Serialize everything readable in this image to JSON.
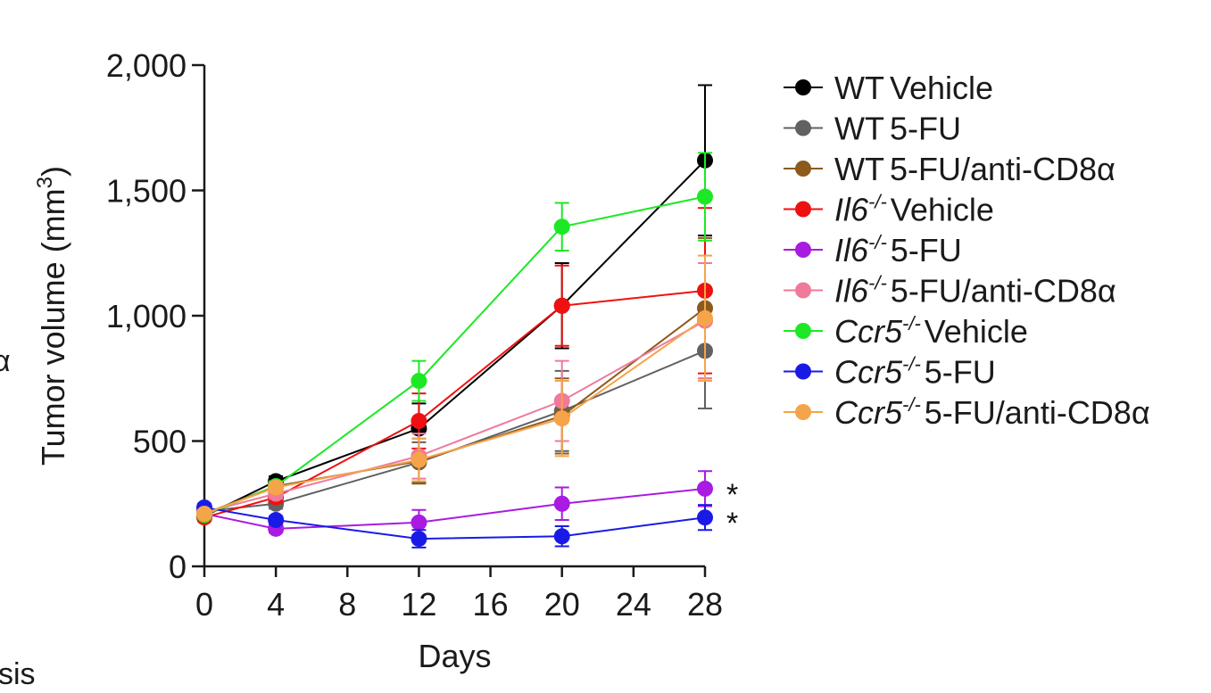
{
  "colors": {
    "WT Vehicle": "#000000",
    "WT 5-FU": "#616161",
    "WT 5-FU/anti-CD8α": "#8b5a1c",
    "Il6 Vehicle": "#ee1111",
    "Il6 5-FU": "#a91be0",
    "Il6 5-FU/anti-CD8α": "#f07a9a",
    "Ccr5 Vehicle": "#1de825",
    "Ccr5 5-FU": "#1a1ae6",
    "Ccr5 5-FU/anti-CD8α": "#f5a44a"
  },
  "fragments": {
    "left_symbol": "α",
    "bottom_left_text": "sis"
  },
  "chart_data": {
    "type": "line",
    "xlabel": "Days",
    "ylabel_main": "Tumor volume (mm",
    "ylabel_sup": "3",
    "ylabel_close": ")",
    "xlim": [
      0,
      28
    ],
    "ylim": [
      0,
      2000
    ],
    "xticks": [
      0,
      4,
      8,
      12,
      16,
      20,
      24,
      28
    ],
    "xtick_labels": [
      "0",
      "4",
      "8",
      "12",
      "16",
      "20",
      "24",
      "28"
    ],
    "yticks": [
      0,
      500,
      1000,
      1500,
      2000
    ],
    "ytick_labels": [
      "0",
      "500",
      "1,000",
      "1,500",
      "2,000"
    ],
    "x": [
      0,
      4,
      12,
      20,
      28
    ],
    "series": [
      {
        "key": "WT Vehicle",
        "gene": "WT",
        "sup": "",
        "treatment": "Vehicle",
        "values": [
          200,
          340,
          550,
          1040,
          1620
        ],
        "errors": [
          15,
          20,
          100,
          170,
          300
        ]
      },
      {
        "key": "WT 5-FU",
        "gene": "WT",
        "sup": "",
        "treatment": "5-FU",
        "values": [
          220,
          250,
          415,
          620,
          860
        ],
        "errors": [
          15,
          20,
          80,
          160,
          230
        ]
      },
      {
        "key": "WT 5-FU/anti-CD8α",
        "gene": "WT",
        "sup": "",
        "treatment": "5-FU/anti-CD8α",
        "values": [
          210,
          320,
          420,
          600,
          1030
        ],
        "errors": [
          15,
          20,
          90,
          150,
          280
        ]
      },
      {
        "key": "Il6 Vehicle",
        "gene": "Il6",
        "sup": "-/-",
        "treatment": "Vehicle",
        "values": [
          195,
          275,
          580,
          1040,
          1100
        ],
        "errors": [
          15,
          20,
          110,
          160,
          330
        ]
      },
      {
        "key": "Il6 5-FU",
        "gene": "Il6",
        "sup": "-/-",
        "treatment": "5-FU",
        "values": [
          210,
          150,
          175,
          250,
          310
        ],
        "errors": [
          15,
          15,
          50,
          65,
          70
        ]
      },
      {
        "key": "Il6 5-FU/anti-CD8α",
        "gene": "Il6",
        "sup": "-/-",
        "treatment": "5-FU/anti-CD8α",
        "values": [
          215,
          290,
          440,
          660,
          980
        ],
        "errors": [
          15,
          20,
          90,
          160,
          230
        ]
      },
      {
        "key": "Ccr5 Vehicle",
        "gene": "Ccr5",
        "sup": "-/-",
        "treatment": "Vehicle",
        "values": [
          205,
          320,
          740,
          1355,
          1475
        ],
        "errors": [
          15,
          20,
          80,
          95,
          175
        ]
      },
      {
        "key": "Ccr5 5-FU",
        "gene": "Ccr5",
        "sup": "-/-",
        "treatment": "5-FU",
        "values": [
          235,
          185,
          110,
          120,
          195
        ],
        "errors": [
          15,
          15,
          35,
          40,
          50
        ]
      },
      {
        "key": "Ccr5 5-FU/anti-CD8α",
        "gene": "Ccr5",
        "sup": "-/-",
        "treatment": "5-FU/anti-CD8α",
        "values": [
          210,
          315,
          425,
          590,
          990
        ],
        "errors": [
          15,
          20,
          85,
          150,
          250
        ]
      }
    ],
    "annotations": [
      {
        "text": "*",
        "series": "Il6 5-FU",
        "x": 28
      },
      {
        "text": "*",
        "series": "Ccr5 5-FU",
        "x": 28
      }
    ],
    "legend_position": "right",
    "grid": false
  }
}
